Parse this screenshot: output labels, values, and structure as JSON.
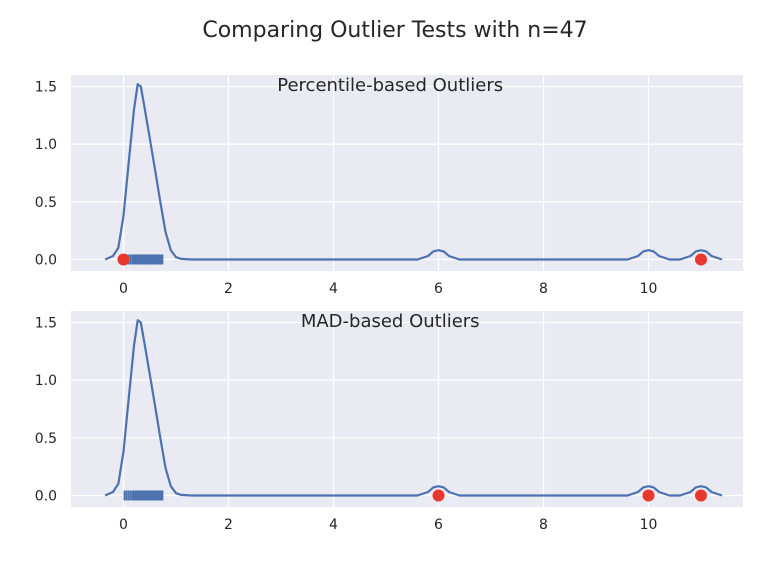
{
  "figure": {
    "title": "Comparing Outlier Tests with n=47"
  },
  "chart_data": [
    {
      "type": "line",
      "title": "Percentile-based Outliers",
      "xlim": [
        -1.0,
        11.8
      ],
      "ylim": [
        -0.1,
        1.6
      ],
      "xticks": [
        0,
        2,
        4,
        6,
        8,
        10
      ],
      "yticks": [
        0.0,
        0.5,
        1.0,
        1.5
      ],
      "grid": true,
      "series": [
        {
          "kind": "kde",
          "color": "#4c72b0",
          "x": [
            -0.35,
            -0.2,
            -0.1,
            0.0,
            0.1,
            0.2,
            0.27,
            0.33,
            0.4,
            0.5,
            0.6,
            0.7,
            0.8,
            0.9,
            1.0,
            1.1,
            1.3,
            2.0,
            3.0,
            4.0,
            5.0,
            5.6,
            5.8,
            5.9,
            6.0,
            6.1,
            6.2,
            6.4,
            7.0,
            8.0,
            9.0,
            9.6,
            9.8,
            9.9,
            10.0,
            10.1,
            10.2,
            10.4,
            10.6,
            10.8,
            10.9,
            11.0,
            11.1,
            11.2,
            11.4
          ],
          "y": [
            0.0,
            0.03,
            0.1,
            0.38,
            0.85,
            1.3,
            1.52,
            1.5,
            1.32,
            1.05,
            0.78,
            0.5,
            0.24,
            0.08,
            0.02,
            0.005,
            0.0,
            0.0,
            0.0,
            0.0,
            0.0,
            0.0,
            0.03,
            0.07,
            0.08,
            0.07,
            0.03,
            0.0,
            0.0,
            0.0,
            0.0,
            0.0,
            0.03,
            0.07,
            0.08,
            0.07,
            0.03,
            0.0,
            0.0,
            0.03,
            0.07,
            0.08,
            0.07,
            0.03,
            0.0
          ]
        }
      ],
      "rug": [
        0.02,
        0.06,
        0.1,
        0.14,
        0.18,
        0.2,
        0.22,
        0.25,
        0.27,
        0.29,
        0.31,
        0.33,
        0.35,
        0.37,
        0.39,
        0.41,
        0.43,
        0.45,
        0.47,
        0.49,
        0.51,
        0.53,
        0.55,
        0.57,
        0.6,
        0.62,
        0.64,
        0.66,
        0.69,
        0.72,
        0.74
      ],
      "outliers": [
        0.0,
        11.0
      ],
      "outlier_color": "#e8372c"
    },
    {
      "type": "line",
      "title": "MAD-based Outliers",
      "xlim": [
        -1.0,
        11.8
      ],
      "ylim": [
        -0.1,
        1.6
      ],
      "xticks": [
        0,
        2,
        4,
        6,
        8,
        10
      ],
      "yticks": [
        0.0,
        0.5,
        1.0,
        1.5
      ],
      "grid": true,
      "series": [
        {
          "kind": "kde",
          "color": "#4c72b0",
          "x": [
            -0.35,
            -0.2,
            -0.1,
            0.0,
            0.1,
            0.2,
            0.27,
            0.33,
            0.4,
            0.5,
            0.6,
            0.7,
            0.8,
            0.9,
            1.0,
            1.1,
            1.3,
            2.0,
            3.0,
            4.0,
            5.0,
            5.6,
            5.8,
            5.9,
            6.0,
            6.1,
            6.2,
            6.4,
            7.0,
            8.0,
            9.0,
            9.6,
            9.8,
            9.9,
            10.0,
            10.1,
            10.2,
            10.4,
            10.6,
            10.8,
            10.9,
            11.0,
            11.1,
            11.2,
            11.4
          ],
          "y": [
            0.0,
            0.03,
            0.1,
            0.38,
            0.85,
            1.3,
            1.52,
            1.5,
            1.32,
            1.05,
            0.78,
            0.5,
            0.24,
            0.08,
            0.02,
            0.005,
            0.0,
            0.0,
            0.0,
            0.0,
            0.0,
            0.0,
            0.03,
            0.07,
            0.08,
            0.07,
            0.03,
            0.0,
            0.0,
            0.0,
            0.0,
            0.0,
            0.03,
            0.07,
            0.08,
            0.07,
            0.03,
            0.0,
            0.0,
            0.03,
            0.07,
            0.08,
            0.07,
            0.03,
            0.0
          ]
        }
      ],
      "rug": [
        0.02,
        0.06,
        0.1,
        0.14,
        0.18,
        0.2,
        0.22,
        0.25,
        0.27,
        0.29,
        0.31,
        0.33,
        0.35,
        0.37,
        0.39,
        0.41,
        0.43,
        0.45,
        0.47,
        0.49,
        0.51,
        0.53,
        0.55,
        0.57,
        0.6,
        0.62,
        0.64,
        0.66,
        0.69,
        0.72,
        0.74
      ],
      "outliers": [
        6.0,
        10.0,
        11.0
      ],
      "outlier_color": "#e8372c"
    }
  ],
  "colors": {
    "axes_background": "#eaeaf2",
    "grid": "#ffffff",
    "text": "#262626"
  }
}
